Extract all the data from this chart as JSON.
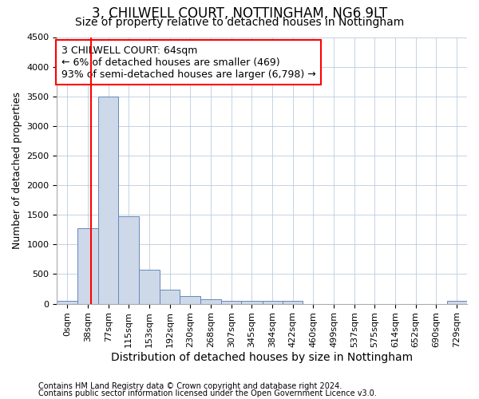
{
  "title": "3, CHILWELL COURT, NOTTINGHAM, NG6 9LT",
  "subtitle": "Size of property relative to detached houses in Nottingham",
  "xlabel": "Distribution of detached houses by size in Nottingham",
  "ylabel": "Number of detached properties",
  "footnote1": "Contains HM Land Registry data © Crown copyright and database right 2024.",
  "footnote2": "Contains public sector information licensed under the Open Government Licence v3.0.",
  "bar_edges": [
    0,
    38,
    77,
    115,
    153,
    192,
    230,
    268,
    307,
    345,
    384,
    422,
    460,
    499,
    537,
    575,
    614,
    652,
    690,
    729,
    767
  ],
  "bar_heights": [
    50,
    1270,
    3500,
    1480,
    580,
    240,
    130,
    80,
    55,
    50,
    50,
    50,
    0,
    0,
    0,
    0,
    0,
    0,
    0,
    50
  ],
  "bar_color": "#cdd8e8",
  "bar_edge_color": "#6688bb",
  "property_line_x": 64,
  "property_line_color": "red",
  "annotation_line1": "3 CHILWELL COURT: 64sqm",
  "annotation_line2": "← 6% of detached houses are smaller (469)",
  "annotation_line3": "93% of semi-detached houses are larger (6,798) →",
  "annotation_box_color": "white",
  "annotation_border_color": "red",
  "ylim": [
    0,
    4500
  ],
  "yticks": [
    0,
    500,
    1000,
    1500,
    2000,
    2500,
    3000,
    3500,
    4000,
    4500
  ],
  "bg_color": "#ffffff",
  "plot_bg_color": "#ffffff",
  "grid_color": "#bbccdd",
  "title_fontsize": 12,
  "subtitle_fontsize": 10,
  "xlabel_fontsize": 10,
  "ylabel_fontsize": 9,
  "tick_fontsize": 8,
  "annotation_fontsize": 9,
  "footnote_fontsize": 7
}
